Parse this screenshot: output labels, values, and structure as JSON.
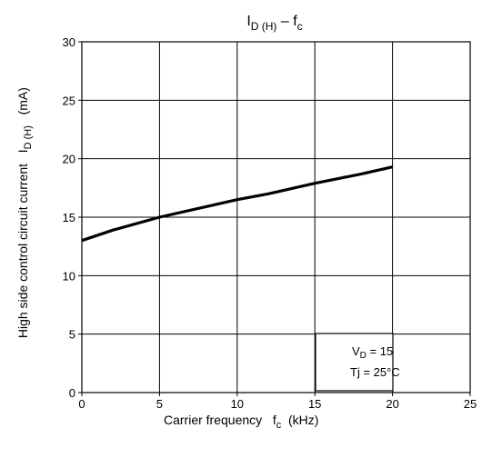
{
  "chart_data": {
    "type": "line",
    "title": {
      "main": "I",
      "main_sub": "D (H)",
      "sep": " – f",
      "sep_sub": "c"
    },
    "xlabel": {
      "text": "Carrier frequency   f",
      "sub": "c",
      "unit": "  (kHz)"
    },
    "ylabel": {
      "text": "High side control circuit current   I",
      "sub": "D (H)",
      "unit": "   (mA)"
    },
    "xlim": [
      0,
      25
    ],
    "ylim": [
      0,
      30
    ],
    "x_ticks": [
      "0",
      "5",
      "10",
      "15",
      "20",
      "25"
    ],
    "y_ticks": [
      "0",
      "5",
      "10",
      "15",
      "20",
      "25",
      "30"
    ],
    "grid": true,
    "series": [
      {
        "x": [
          0,
          2,
          5,
          8,
          10,
          12,
          15,
          18,
          20
        ],
        "y": [
          13.0,
          13.9,
          15.0,
          15.9,
          16.5,
          17.0,
          17.9,
          18.7,
          19.3
        ]
      }
    ],
    "annotation": {
      "line1": {
        "text": "V",
        "sub": "D",
        "rest": " = 15"
      },
      "line2": "Tj = 25°C"
    }
  },
  "colors": {
    "line": "#000000",
    "grid": "#000000",
    "background": "#ffffff"
  }
}
